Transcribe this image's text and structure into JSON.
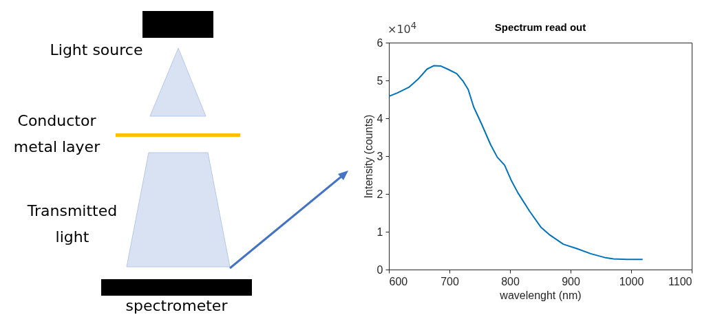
{
  "chart_data": {
    "type": "line",
    "title": "Spectrum read out",
    "xlabel": "wavelenght (nm)",
    "ylabel": "Intensity (counts)",
    "annotations": [
      "×10$^{4}$",
      "Light source",
      "Conductor metal layer",
      "Transmitted light",
      "spectrometer"
    ],
    "x": [
      600,
      614,
      633,
      648,
      663,
      674,
      686,
      697,
      712,
      723,
      731,
      740,
      753,
      768,
      779,
      791,
      802,
      813,
      832,
      851,
      866,
      888,
      911,
      933,
      956,
      971,
      993,
      1019
    ],
    "series": [
      {
        "color": "#0072bd",
        "values": [
          4.58,
          4.67,
          4.82,
          5.03,
          5.3,
          5.39,
          5.38,
          5.3,
          5.18,
          4.97,
          4.76,
          4.3,
          3.85,
          3.3,
          2.97,
          2.76,
          2.36,
          2.03,
          1.55,
          1.12,
          0.91,
          0.67,
          0.55,
          0.42,
          0.32,
          0.28,
          0.27,
          0.27
        ]
      }
    ],
    "xlim": [
      600,
      1100
    ],
    "xticks": [
      600,
      700,
      800,
      900,
      1000,
      1100
    ],
    "ylim": [
      0,
      6
    ],
    "yticks": [
      0,
      1,
      2,
      3,
      4,
      5,
      6
    ],
    "grid": false
  }
}
